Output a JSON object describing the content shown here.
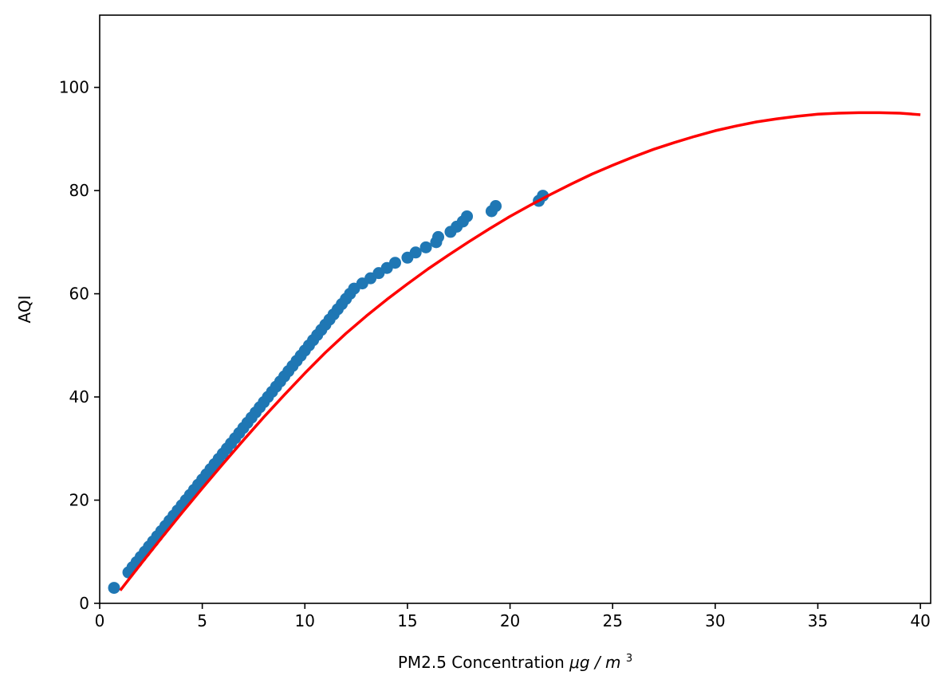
{
  "chart_data": {
    "type": "scatter",
    "title": "",
    "xlabel": "PM2.5 Concentration",
    "xlabel_unit": "μg / m",
    "xlabel_unit_sup": "3",
    "ylabel": "AQI",
    "xlim": [
      0,
      40.5
    ],
    "ylim": [
      0,
      114
    ],
    "xticks": [
      0,
      5,
      10,
      15,
      20,
      25,
      30,
      35,
      40
    ],
    "yticks": [
      0,
      20,
      40,
      60,
      80,
      100
    ],
    "grid": false,
    "legend": "none",
    "colors": {
      "scatter": "#1f77b4",
      "fit": "#ff0000"
    },
    "series": [
      {
        "kind": "scatter",
        "x": [
          0.7,
          1.4,
          1.6,
          1.8,
          2.0,
          2.2,
          2.4,
          2.6,
          2.8,
          3.0,
          3.2,
          3.4,
          3.6,
          3.8,
          4.0,
          4.2,
          4.4,
          4.6,
          4.8,
          5.0,
          5.2,
          5.4,
          5.6,
          5.8,
          6.0,
          6.2,
          6.4,
          6.6,
          6.8,
          7.0,
          7.2,
          7.4,
          7.6,
          7.8,
          8.0,
          8.2,
          8.4,
          8.6,
          8.8,
          9.0,
          9.2,
          9.4,
          9.6,
          9.8,
          10.0,
          10.2,
          10.4,
          10.6,
          10.8,
          11.0,
          11.2,
          11.4,
          11.6,
          11.8,
          12.0,
          12.2,
          12.4,
          12.8,
          13.2,
          13.6,
          14.0,
          14.4,
          15.0,
          15.4,
          15.9,
          16.4,
          16.5,
          17.1,
          17.4,
          17.7,
          17.9,
          19.1,
          19.3,
          21.4,
          21.6
        ],
        "y": [
          3,
          6,
          7,
          8,
          9,
          10,
          11,
          12,
          13,
          14,
          15,
          16,
          17,
          18,
          19,
          20,
          21,
          22,
          23,
          24,
          25,
          26,
          27,
          28,
          29,
          30,
          31,
          32,
          33,
          34,
          35,
          36,
          37,
          38,
          39,
          40,
          41,
          42,
          43,
          44,
          45,
          46,
          47,
          48,
          49,
          50,
          51,
          52,
          53,
          54,
          55,
          56,
          57,
          58,
          59,
          60,
          61,
          62,
          63,
          64,
          65,
          66,
          67,
          68,
          69,
          70,
          71,
          72,
          73,
          74,
          75,
          76,
          77,
          78,
          79
        ]
      },
      {
        "kind": "line",
        "x": [
          1,
          2,
          3,
          4,
          5,
          6,
          7,
          8,
          9,
          10,
          11,
          12,
          13,
          14,
          15,
          16,
          17,
          18,
          19,
          20,
          21,
          22,
          23,
          24,
          25,
          26,
          27,
          28,
          29,
          30,
          31,
          32,
          33,
          34,
          35,
          36,
          37,
          38,
          39,
          40
        ],
        "y": [
          2.5,
          7.6,
          12.6,
          17.5,
          22.3,
          27.0,
          31.6,
          36.1,
          40.4,
          44.6,
          48.6,
          52.3,
          55.7,
          58.9,
          61.9,
          64.8,
          67.5,
          70.1,
          72.6,
          75.0,
          77.2,
          79.3,
          81.3,
          83.2,
          84.9,
          86.5,
          88.0,
          89.3,
          90.5,
          91.6,
          92.5,
          93.3,
          93.9,
          94.4,
          94.8,
          95.0,
          95.1,
          95.1,
          95.0,
          94.7
        ]
      }
    ]
  }
}
